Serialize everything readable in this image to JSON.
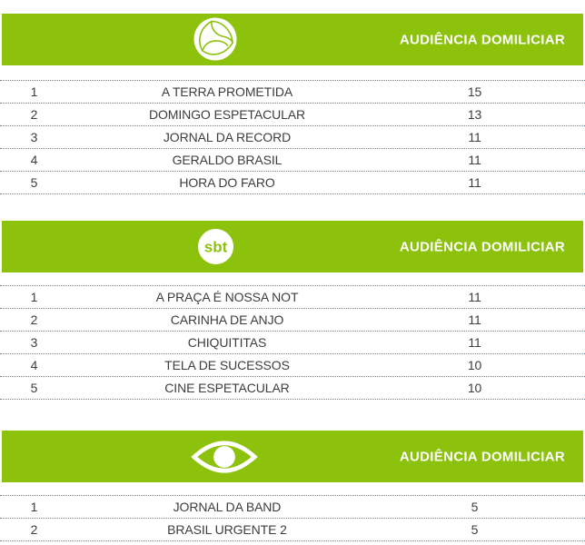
{
  "colors": {
    "brand_green": "#8CC10C",
    "divider_blue": "#4A87A9",
    "row_text": "#3D3D3D",
    "header_text": "#FFFFFF"
  },
  "chart_data": [
    {
      "type": "table",
      "network": "RecordTV",
      "logo_icon": "record-logo-icon",
      "header": "AUDIÊNCIA DOMILICIAR",
      "columns": [
        "rank",
        "program",
        "audiencia_domiciliar"
      ],
      "rows": [
        [
          "1",
          "A TERRA PROMETIDA",
          "15"
        ],
        [
          "2",
          "DOMINGO ESPETACULAR",
          "13"
        ],
        [
          "3",
          "JORNAL DA RECORD",
          "11"
        ],
        [
          "4",
          "GERALDO BRASIL",
          "11"
        ],
        [
          "5",
          "HORA DO FARO",
          "11"
        ]
      ]
    },
    {
      "type": "table",
      "network": "SBT",
      "logo_icon": "sbt-logo-icon",
      "logo_text": "sbt",
      "header": "AUDIÊNCIA DOMILICIAR",
      "columns": [
        "rank",
        "program",
        "audiencia_domiciliar"
      ],
      "rows": [
        [
          "1",
          "A PRAÇA É NOSSA NOT",
          "11"
        ],
        [
          "2",
          "CARINHA DE ANJO",
          "11"
        ],
        [
          "3",
          "CHIQUITITAS",
          "11"
        ],
        [
          "4",
          "TELA DE SUCESSOS",
          "10"
        ],
        [
          "5",
          "CINE ESPETACULAR",
          "10"
        ]
      ]
    },
    {
      "type": "table",
      "network": "Band",
      "logo_icon": "band-logo-icon",
      "header": "AUDIÊNCIA DOMILICIAR",
      "columns": [
        "rank",
        "program",
        "audiencia_domiciliar"
      ],
      "rows": [
        [
          "1",
          "JORNAL DA BAND",
          "5"
        ],
        [
          "2",
          "BRASIL URGENTE 2",
          "5"
        ]
      ]
    }
  ]
}
